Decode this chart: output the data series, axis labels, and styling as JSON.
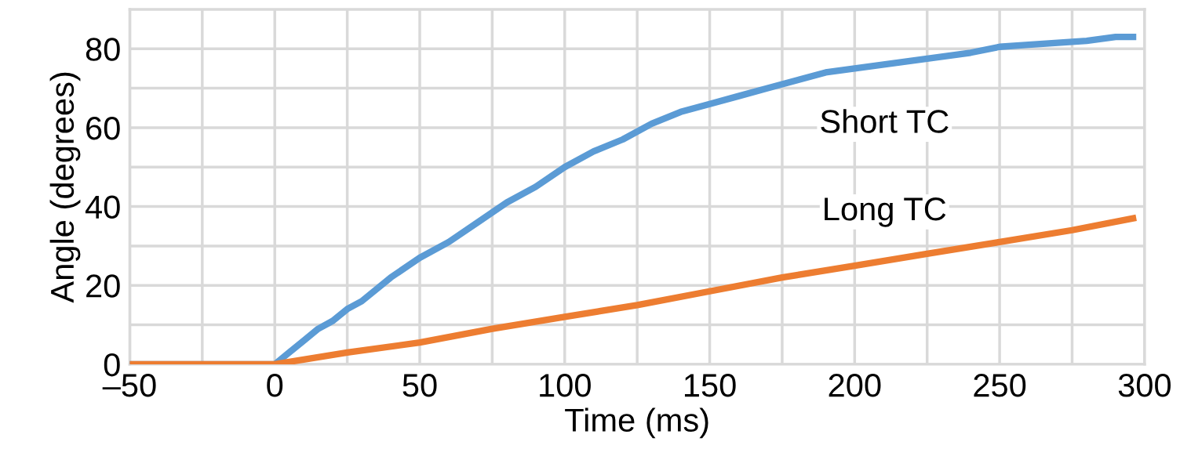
{
  "chart_data": {
    "type": "line",
    "xlabel": "Time (ms)",
    "ylabel": "Angle (degrees)",
    "xlim": [
      -50,
      300
    ],
    "ylim": [
      0,
      90
    ],
    "xticks": [
      {
        "value": -50,
        "label": "–50"
      },
      {
        "value": -25,
        "label": null
      },
      0,
      {
        "value": 25,
        "label": null
      },
      50,
      {
        "value": 75,
        "label": null
      },
      100,
      {
        "value": 125,
        "label": null
      },
      150,
      {
        "value": 175,
        "label": null
      },
      200,
      {
        "value": 225,
        "label": null
      },
      250,
      {
        "value": 275,
        "label": null
      },
      300
    ],
    "yticks": [
      0,
      {
        "value": 10,
        "label": null
      },
      20,
      {
        "value": 30,
        "label": null
      },
      40,
      {
        "value": 50,
        "label": null
      },
      60,
      {
        "value": 70,
        "label": null
      },
      80
    ],
    "grid": true,
    "marker": "none",
    "line_style": "solid",
    "series": [
      {
        "name": "Short TC",
        "color": "#5b9bd5",
        "x": [
          -50,
          0,
          5,
          10,
          15,
          20,
          25,
          30,
          40,
          50,
          60,
          70,
          80,
          90,
          100,
          110,
          120,
          130,
          140,
          150,
          160,
          170,
          180,
          190,
          200,
          210,
          220,
          230,
          240,
          250,
          260,
          270,
          280,
          290,
          296
        ],
        "values": [
          0,
          0,
          3,
          6,
          9,
          11,
          14,
          16,
          22,
          27,
          31,
          36,
          41,
          45,
          50,
          54,
          57,
          61,
          64,
          66,
          68,
          70,
          72,
          74,
          75,
          76,
          77,
          78,
          79,
          80.5,
          81,
          81.5,
          82,
          83,
          83
        ]
      },
      {
        "name": "Long TC",
        "color": "#ed7d31",
        "x": [
          -50,
          0,
          25,
          50,
          75,
          100,
          125,
          150,
          175,
          200,
          225,
          250,
          275,
          296
        ],
        "values": [
          0,
          0,
          3,
          5.5,
          9,
          12,
          15,
          18.5,
          22,
          25,
          28,
          31,
          34,
          37
        ]
      }
    ]
  }
}
